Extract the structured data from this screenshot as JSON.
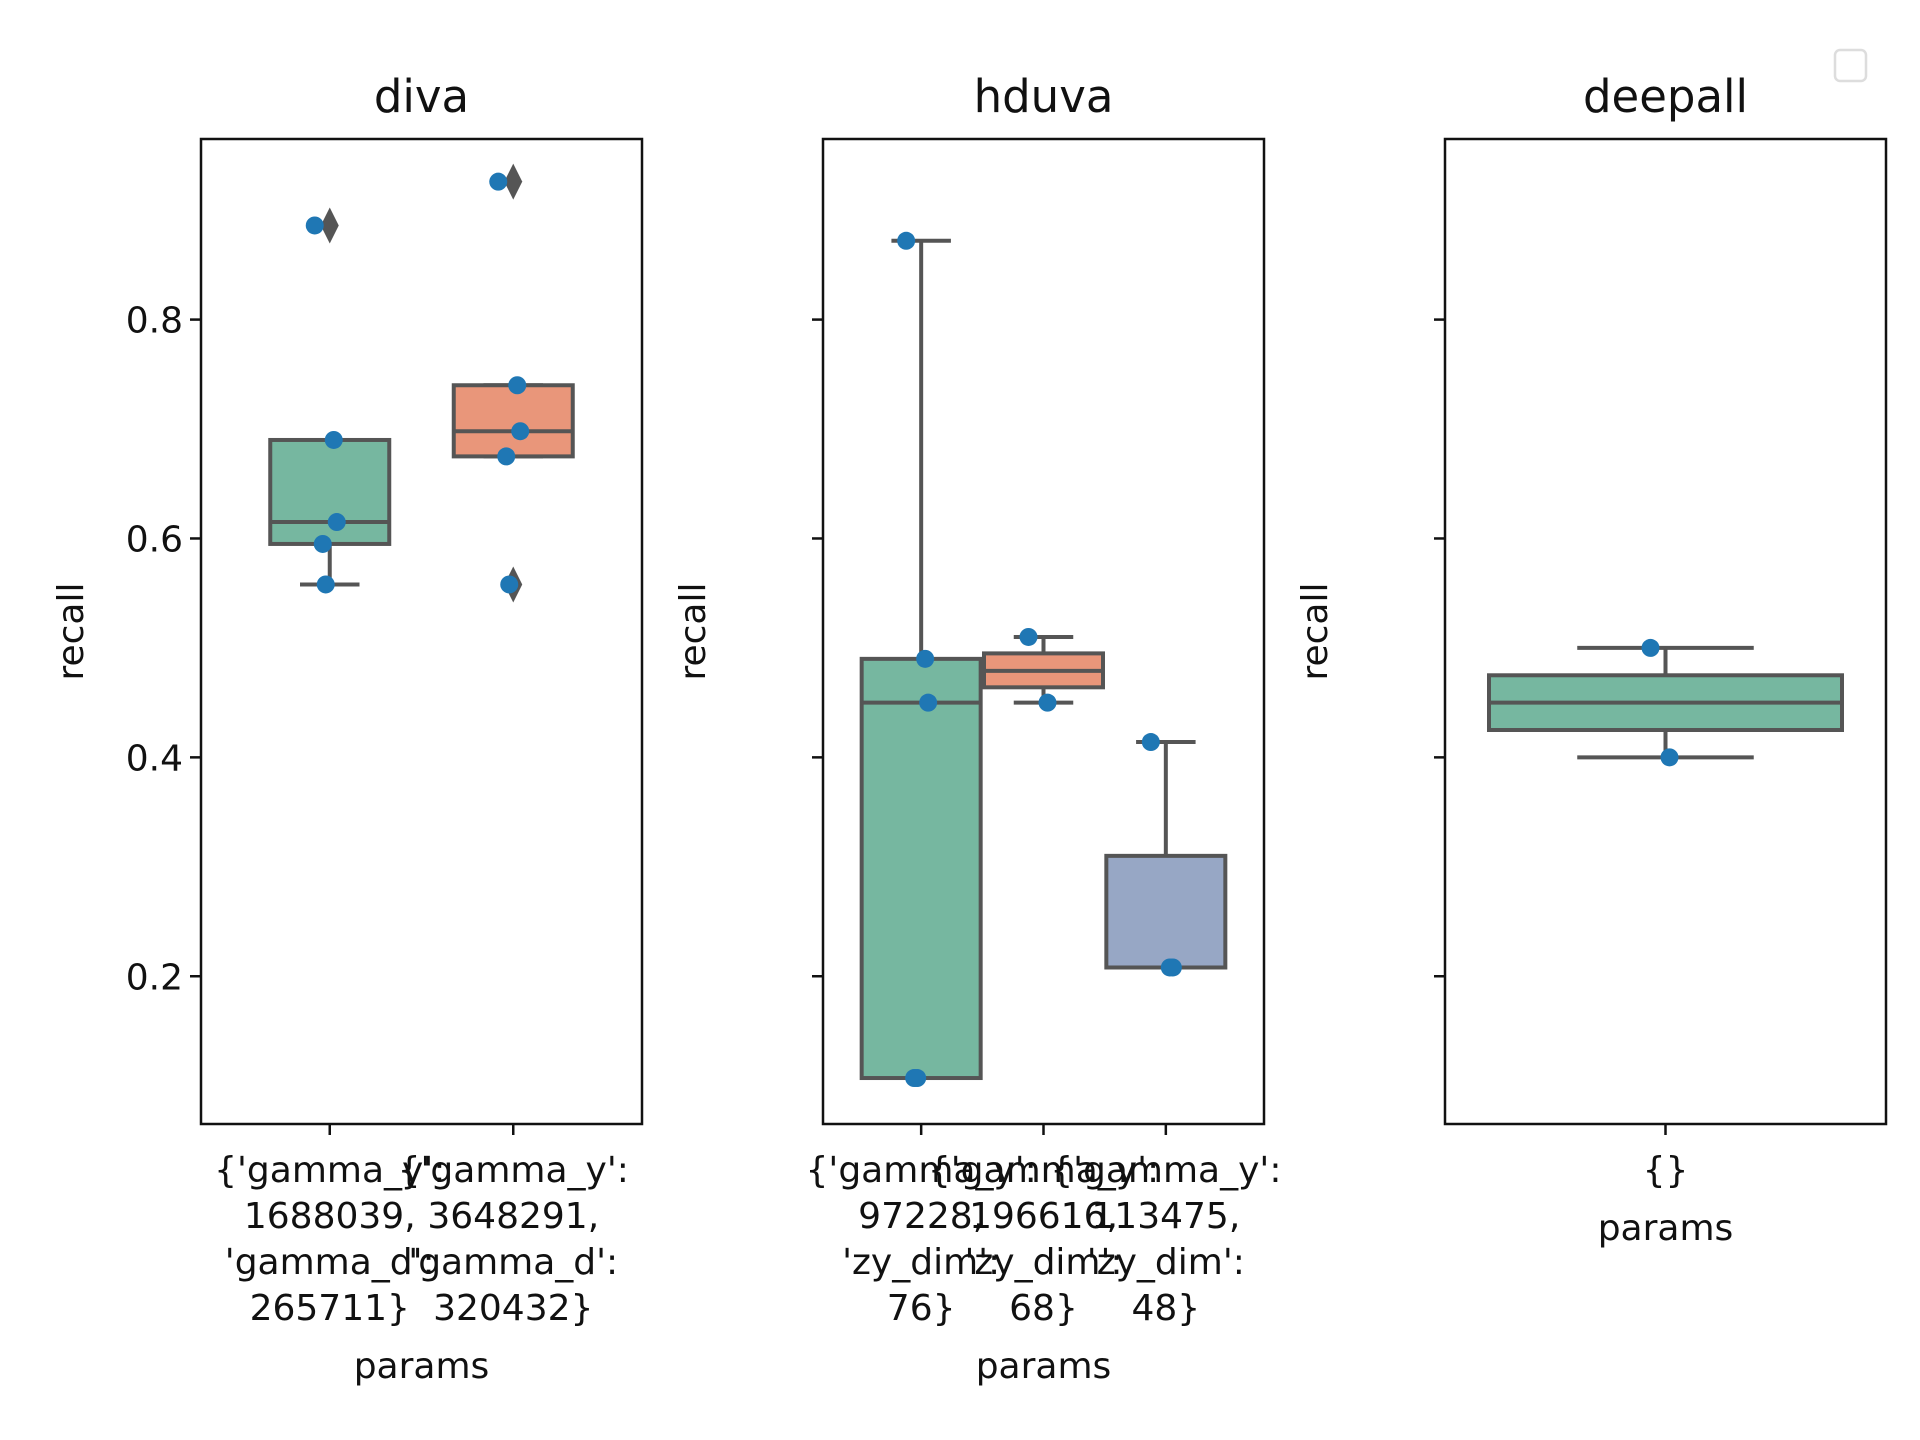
{
  "chart_data": [
    {
      "type": "box",
      "title": "diva",
      "xlabel": "params",
      "ylabel": "recall",
      "ylim": [
        0.065,
        0.965
      ],
      "yticks": [
        "0.2",
        "0.4",
        "0.6",
        "0.8"
      ],
      "groups": [
        {
          "label": [
            "{'gamma_y':",
            "1688039,",
            "'gamma_d':",
            "265711}"
          ],
          "color": "#76b7a0",
          "q1": 0.595,
          "median": 0.615,
          "q3": 0.69,
          "whisker_low": 0.558,
          "whisker_high": 0.69,
          "outliers": [
            0.886
          ],
          "points": [
            0.886,
            0.69,
            0.615,
            0.595,
            0.558
          ]
        },
        {
          "label": [
            "{'gamma_y':",
            "3648291,",
            "'gamma_d':",
            "320432}"
          ],
          "color": "#e9967a",
          "q1": 0.675,
          "median": 0.698,
          "q3": 0.74,
          "whisker_low": 0.675,
          "whisker_high": 0.74,
          "outliers": [
            0.926,
            0.558
          ],
          "points": [
            0.926,
            0.74,
            0.698,
            0.675,
            0.558
          ]
        }
      ]
    },
    {
      "type": "box",
      "title": "hduva",
      "xlabel": "params",
      "ylabel": "recall",
      "ylim": [
        0.065,
        0.965
      ],
      "yticks": [
        "",
        "",
        "",
        ""
      ],
      "groups": [
        {
          "label": [
            "{'gamma_y':",
            "97228,",
            "'zy_dim':",
            "76}"
          ],
          "color": "#76b7a0",
          "q1": 0.107,
          "median": 0.45,
          "q3": 0.49,
          "whisker_low": 0.107,
          "whisker_high": 0.872,
          "outliers": [],
          "points": [
            0.872,
            0.49,
            0.45,
            0.107,
            0.107
          ]
        },
        {
          "label": [
            "{'gamma_y':",
            "196616,",
            "'zy_dim':",
            "68}"
          ],
          "color": "#e9967a",
          "q1": 0.464,
          "median": 0.479,
          "q3": 0.495,
          "whisker_low": 0.45,
          "whisker_high": 0.51,
          "outliers": [],
          "points": [
            0.51,
            0.45
          ]
        },
        {
          "label": [
            "{'gamma_y':",
            "113475,",
            "'zy_dim':",
            "48}"
          ],
          "color": "#97a7c5",
          "q1": 0.208,
          "median": 0.208,
          "q3": 0.31,
          "whisker_low": 0.208,
          "whisker_high": 0.414,
          "outliers": [],
          "points": [
            0.414,
            0.208,
            0.208
          ]
        }
      ]
    },
    {
      "type": "box",
      "title": "deepall",
      "xlabel": "params",
      "ylabel": "recall",
      "ylim": [
        0.065,
        0.965
      ],
      "yticks": [
        "",
        "",
        "",
        ""
      ],
      "groups": [
        {
          "label": [
            "{}"
          ],
          "color": "#76b7a0",
          "q1": 0.425,
          "median": 0.45,
          "q3": 0.475,
          "whisker_low": 0.4,
          "whisker_high": 0.5,
          "outliers": [],
          "points": [
            0.5,
            0.4
          ]
        }
      ]
    }
  ]
}
